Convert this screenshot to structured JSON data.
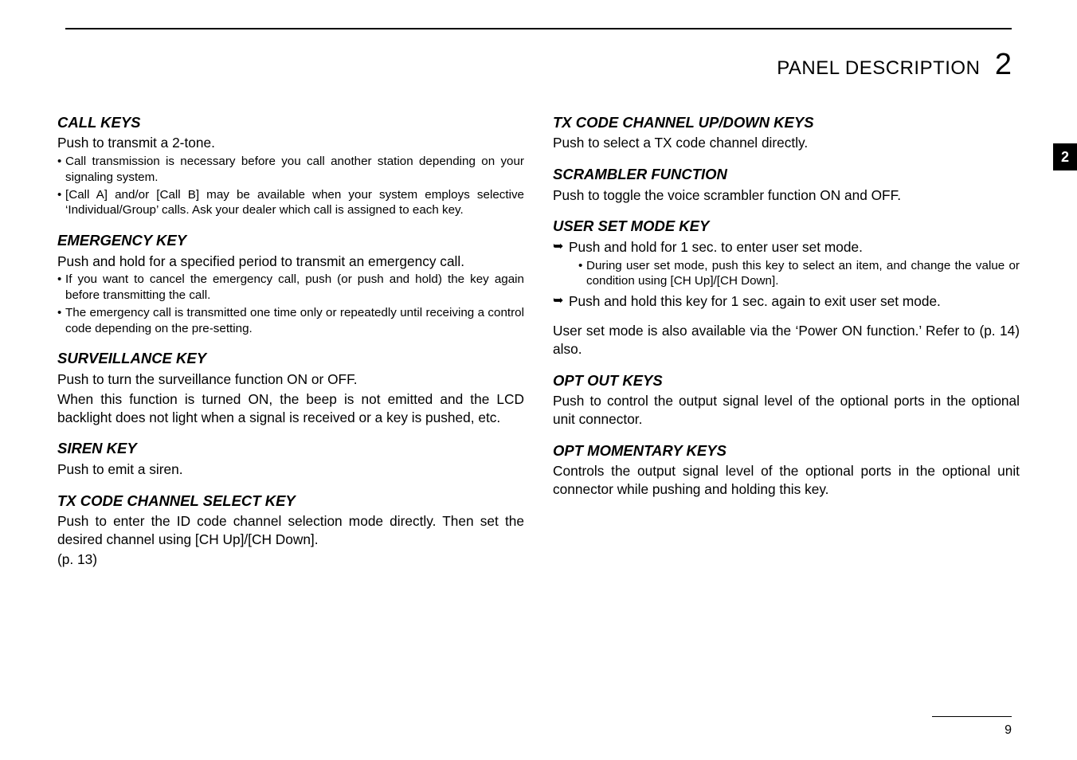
{
  "header": {
    "title": "PANEL DESCRIPTION",
    "chapter": "2"
  },
  "side_tab": "2",
  "page_number": "9",
  "left": {
    "call_keys": {
      "h": "CALL KEYS",
      "p1": "Push to transmit a 2-tone.",
      "b1": "Call transmission is necessary before you call another station depending on your signaling system.",
      "b2": "[Call A] and/or [Call B] may be available when your system employs selective ‘Individual/Group’ calls. Ask your dealer which call is assigned to each key."
    },
    "emergency": {
      "h": "EMERGENCY KEY",
      "p1": "Push and hold for a specified period to transmit an emergency call.",
      "b1": "If you want to cancel the emergency call, push (or push and hold) the key again before transmitting the call.",
      "b2": "The emergency call is transmitted one time only or repeatedly until receiving a control code depending on the pre-setting."
    },
    "surveillance": {
      "h": "SURVEILLANCE KEY",
      "p1": "Push to turn the surveillance function ON or OFF.",
      "p2": "When this function is turned ON, the beep is not emitted and the LCD backlight does not light when a signal is received or a key is pushed, etc."
    },
    "siren": {
      "h": "SIREN KEY",
      "p1": "Push to emit a siren."
    },
    "txselect": {
      "h": "TX CODE CHANNEL SELECT KEY",
      "p1": "Push to enter the ID code channel selection mode directly. Then set the desired channel using [CH Up]/[CH Down].",
      "p2": "(p. 13)"
    }
  },
  "right": {
    "txupdown": {
      "h": "TX CODE CHANNEL UP/DOWN KEYS",
      "p1": "Push to select a TX code channel directly."
    },
    "scrambler": {
      "h": "SCRAMBLER FUNCTION",
      "p1": "Push to toggle the voice scrambler function ON and OFF."
    },
    "userset": {
      "h": "USER SET MODE KEY",
      "a1": "Push and hold for 1 sec. to enter user set mode.",
      "a1s1": "During user set mode, push this key to select an item, and change the value or condition using [CH Up]/[CH Down].",
      "a2": "Push and hold this key for 1 sec. again to exit user set mode.",
      "p2": "User set mode is also available via the ‘Power ON function.’ Refer to (p. 14) also."
    },
    "optout": {
      "h": "OPT OUT KEYS",
      "p1": "Push to control the output signal level of the optional ports in the optional unit connector."
    },
    "optmom": {
      "h": "OPT MOMENTARY KEYS",
      "p1": "Controls the output signal level of the optional ports in the optional unit connector while pushing and holding this key."
    }
  }
}
